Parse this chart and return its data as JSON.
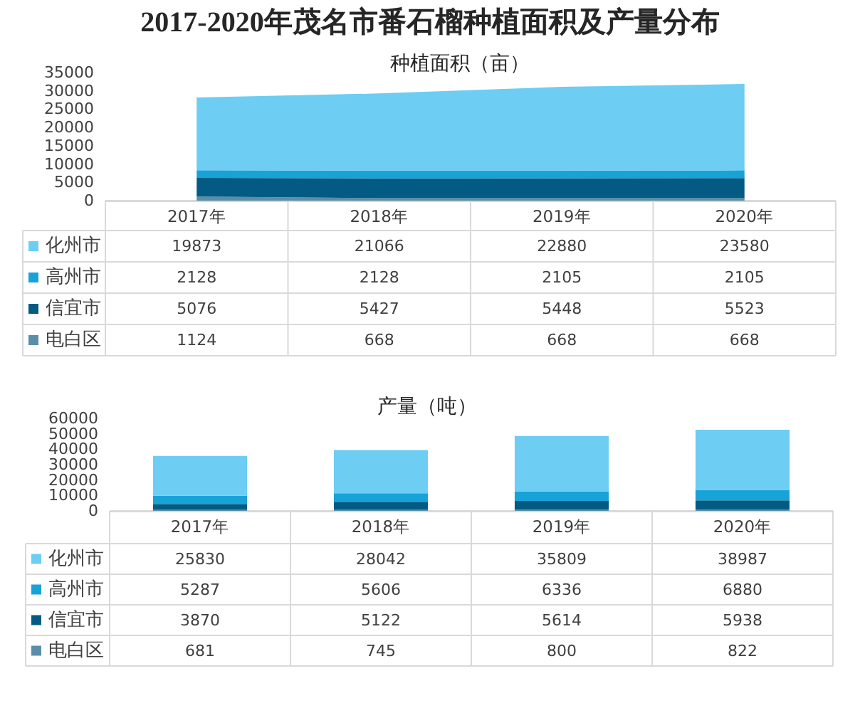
{
  "chart_data": [
    {
      "type": "area",
      "title": "2017-2020年茂名市番石榴种植面积及产量分布",
      "subtitle": "种植面积（亩）",
      "categories": [
        "2017年",
        "2018年",
        "2019年",
        "2020年"
      ],
      "stacked": true,
      "series": [
        {
          "name": "电白区",
          "color": "#5a8ea8",
          "values": [
            1124,
            668,
            668,
            668
          ]
        },
        {
          "name": "信宜市",
          "color": "#035b83",
          "values": [
            5076,
            5427,
            5448,
            5523
          ]
        },
        {
          "name": "高州市",
          "color": "#17a2d8",
          "values": [
            2128,
            2128,
            2105,
            2105
          ]
        },
        {
          "name": "化州市",
          "color": "#6dcdf3",
          "values": [
            19873,
            21066,
            22880,
            23580
          ]
        }
      ],
      "ylim": [
        0,
        35000
      ],
      "yticks": [
        0,
        5000,
        10000,
        15000,
        20000,
        25000,
        30000,
        35000
      ],
      "legend": "bottom left",
      "data_labels": true
    },
    {
      "type": "bar",
      "subtitle": "产量（吨）",
      "categories": [
        "2017年",
        "2018年",
        "2019年",
        "2020年"
      ],
      "stacked": true,
      "series": [
        {
          "name": "电白区",
          "color": "#5a8ea8",
          "values": [
            681,
            745,
            800,
            822
          ]
        },
        {
          "name": "信宜市",
          "color": "#035b83",
          "values": [
            3870,
            5122,
            5614,
            5938
          ]
        },
        {
          "name": "高州市",
          "color": "#17a2d8",
          "values": [
            5287,
            5606,
            6336,
            6880
          ]
        },
        {
          "name": "化州市",
          "color": "#6dcdf3",
          "values": [
            25830,
            28042,
            35809,
            38987
          ]
        }
      ],
      "ylim": [
        0,
        60000
      ],
      "yticks": [
        0,
        10000,
        20000,
        30000,
        40000,
        50000,
        60000
      ],
      "legend": "bottom left",
      "data_labels": true
    }
  ]
}
